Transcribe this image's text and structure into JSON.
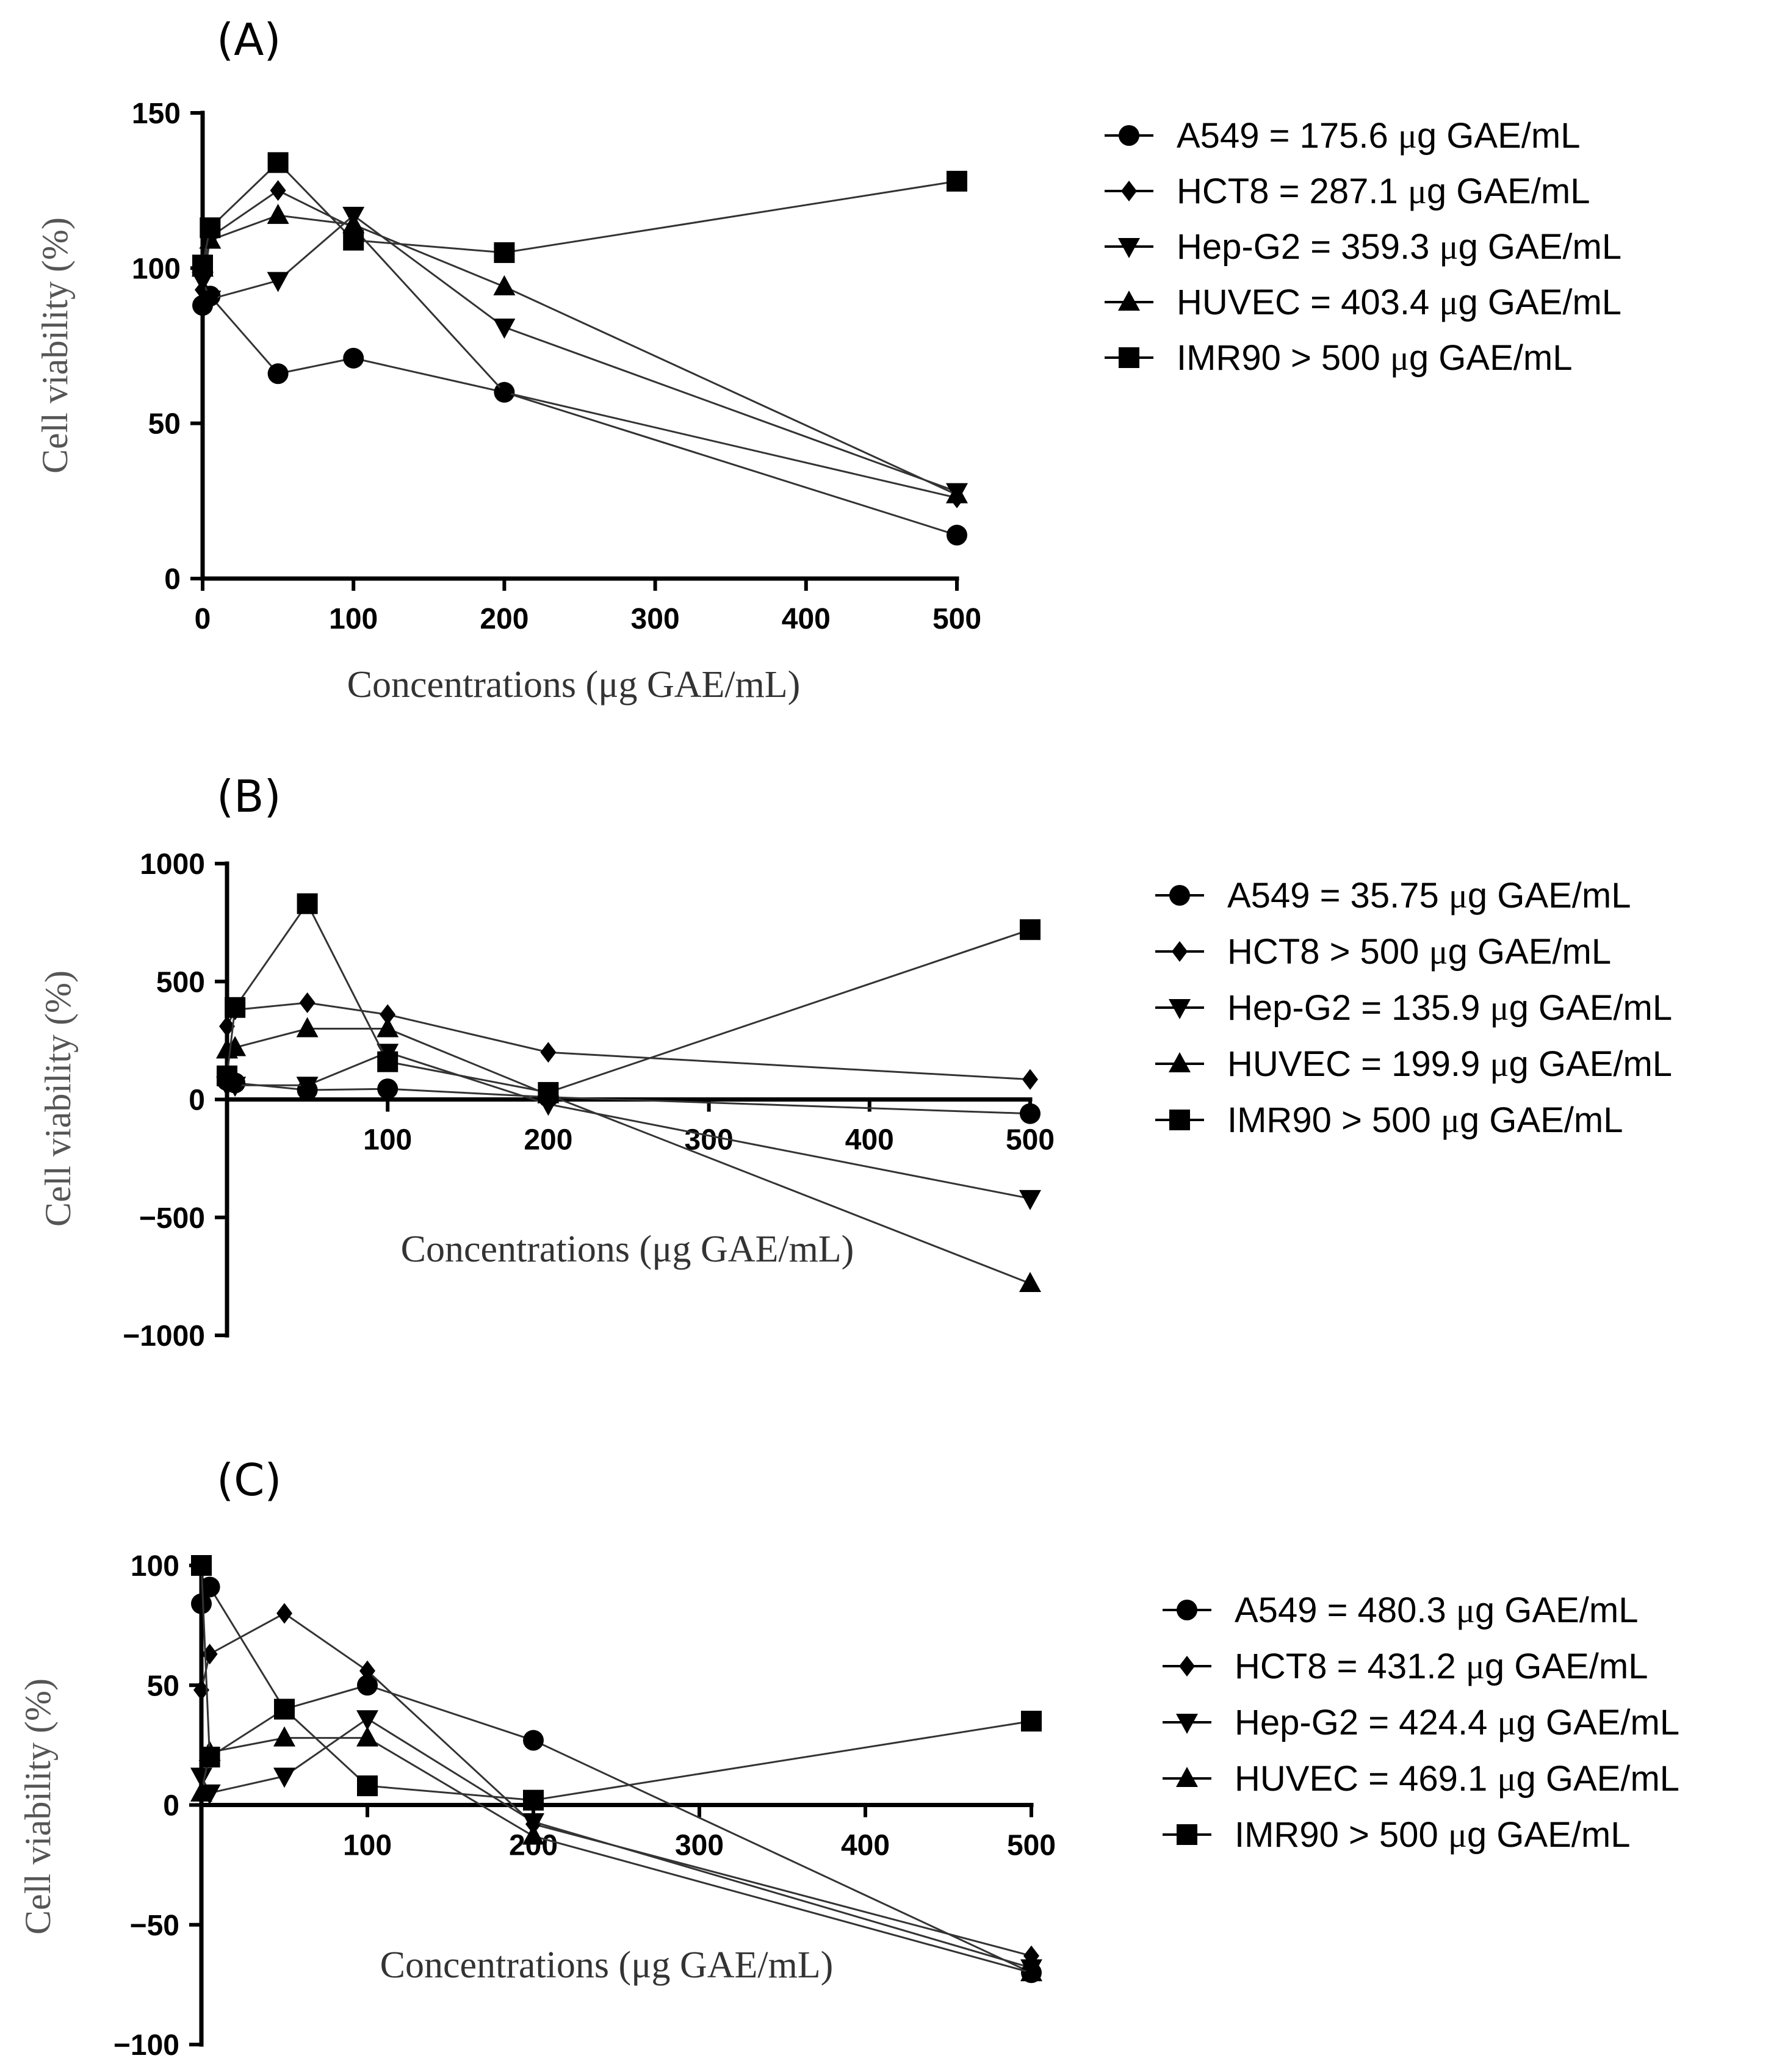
{
  "chart_data": [
    {
      "type": "line",
      "panel_label": "(A)",
      "xlabel": "Concentrations (μg GAE/mL)",
      "ylabel": "Cell viability (%)",
      "xlim": [
        0,
        500
      ],
      "ylim": [
        0,
        150
      ],
      "xticks": [
        0,
        100,
        200,
        300,
        400,
        500
      ],
      "yticks": [
        0,
        50,
        100,
        150
      ],
      "legend_position": "right",
      "series": [
        {
          "name": "A549 = 175.6 μg GAE/mL",
          "marker": "circle",
          "x": [
            0,
            5,
            50,
            100,
            200,
            500
          ],
          "y": [
            88,
            91,
            66,
            71,
            60,
            14
          ]
        },
        {
          "name": "HCT8 = 287.1 μg GAE/mL",
          "marker": "diamond",
          "x": [
            0,
            5,
            50,
            100,
            200,
            500
          ],
          "y": [
            93,
            110,
            125,
            113,
            60,
            26
          ]
        },
        {
          "name": "Hep-G2 = 359.3 μg GAE/mL",
          "marker": "triangle-down",
          "x": [
            0,
            5,
            50,
            100,
            200,
            500
          ],
          "y": [
            96,
            90,
            96,
            117,
            81,
            28
          ]
        },
        {
          "name": "HUVEC = 403.4 μg GAE/mL",
          "marker": "triangle-up",
          "x": [
            0,
            5,
            50,
            100,
            200,
            500
          ],
          "y": [
            100,
            109,
            117,
            114,
            94,
            27
          ]
        },
        {
          "name": "IMR90 > 500 μg GAE/mL",
          "marker": "square",
          "x": [
            0,
            5,
            50,
            100,
            200,
            500
          ],
          "y": [
            101,
            113,
            134,
            109,
            105,
            128
          ]
        }
      ]
    },
    {
      "type": "line",
      "panel_label": "(B)",
      "xlabel": "Concentrations (μg GAE/mL)",
      "ylabel": "Cell viability (%)",
      "xlim": [
        0,
        500
      ],
      "ylim": [
        -1000,
        1000
      ],
      "xticks": [
        100,
        200,
        300,
        400,
        500
      ],
      "yticks": [
        -1000,
        -500,
        0,
        500,
        1000
      ],
      "legend_position": "right",
      "series": [
        {
          "name": "A549 = 35.75 μg GAE/mL",
          "marker": "circle",
          "x": [
            0,
            5,
            50,
            100,
            200,
            500
          ],
          "y": [
            80,
            70,
            40,
            45,
            10,
            -60
          ]
        },
        {
          "name": "HCT8 > 500 μg GAE/mL",
          "marker": "diamond",
          "x": [
            0,
            5,
            50,
            100,
            200,
            500
          ],
          "y": [
            310,
            380,
            410,
            360,
            200,
            85
          ]
        },
        {
          "name": "Hep-G2 = 135.9 μg GAE/mL",
          "marker": "triangle-down",
          "x": [
            0,
            5,
            50,
            100,
            200,
            500
          ],
          "y": [
            60,
            60,
            60,
            200,
            -20,
            -420
          ]
        },
        {
          "name": "HUVEC = 199.9 μg GAE/mL",
          "marker": "triangle-up",
          "x": [
            0,
            5,
            50,
            100,
            200,
            500
          ],
          "y": [
            210,
            220,
            300,
            300,
            20,
            -780
          ]
        },
        {
          "name": "IMR90 > 500 μg GAE/mL",
          "marker": "square",
          "x": [
            0,
            5,
            50,
            100,
            200,
            500
          ],
          "y": [
            100,
            390,
            830,
            160,
            30,
            720
          ]
        }
      ]
    },
    {
      "type": "line",
      "panel_label": "(C)",
      "xlabel": "Concentrations (μg GAE/mL)",
      "ylabel": "Cell viability (%)",
      "xlim": [
        0,
        500
      ],
      "ylim": [
        -100,
        100
      ],
      "xticks": [
        100,
        200,
        300,
        400,
        500
      ],
      "yticks": [
        -100,
        -50,
        0,
        50,
        100
      ],
      "legend_position": "right",
      "series": [
        {
          "name": "A549 = 480.3 μg GAE/mL",
          "marker": "circle",
          "x": [
            0,
            5,
            50,
            100,
            200,
            500
          ],
          "y": [
            84,
            91,
            40,
            50,
            27,
            -70
          ]
        },
        {
          "name": "HCT8 = 431.2 μg GAE/mL",
          "marker": "diamond",
          "x": [
            0,
            5,
            50,
            100,
            200,
            500
          ],
          "y": [
            48,
            63,
            80,
            56,
            -8,
            -63
          ]
        },
        {
          "name": "Hep-G2 = 424.4 μg GAE/mL",
          "marker": "triangle-down",
          "x": [
            0,
            5,
            50,
            100,
            200,
            500
          ],
          "y": [
            12,
            5,
            12,
            36,
            -7,
            -68
          ]
        },
        {
          "name": "HUVEC = 469.1 μg GAE/mL",
          "marker": "triangle-up",
          "x": [
            0,
            5,
            50,
            100,
            200,
            500
          ],
          "y": [
            5,
            22,
            28,
            28,
            -13,
            -70
          ]
        },
        {
          "name": "IMR90 > 500 μg GAE/mL",
          "marker": "square",
          "x": [
            0,
            5,
            50,
            100,
            200,
            500
          ],
          "y": [
            100,
            20,
            40,
            8,
            2,
            35
          ]
        }
      ]
    }
  ]
}
